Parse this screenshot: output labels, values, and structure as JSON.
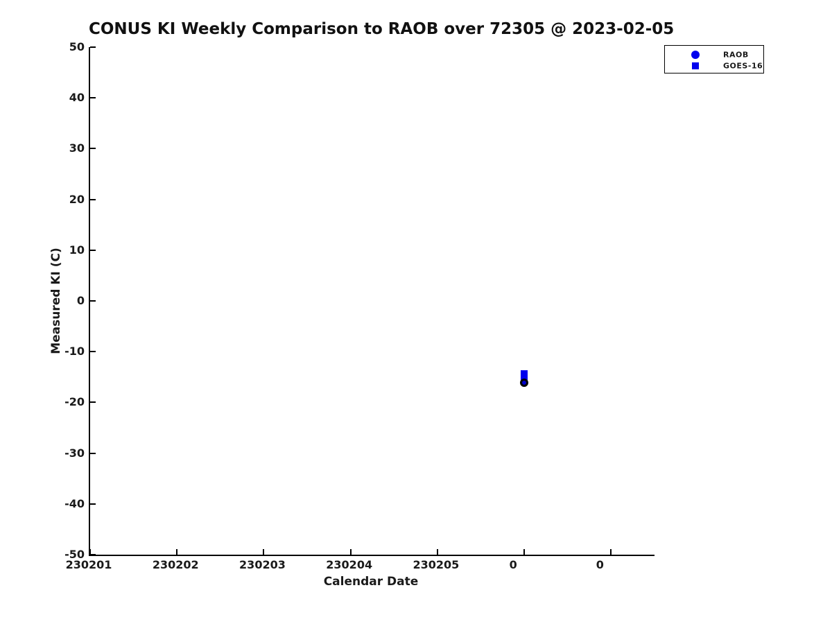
{
  "window": {
    "background": "#ffffff"
  },
  "chart_data": {
    "type": "scatter",
    "title": "CONUS KI Weekly Comparison to RAOB over 72305 @ 2023-02-05",
    "xlabel": "Calendar Date",
    "ylabel": "Measured KI (C)",
    "ylim": [
      -50,
      50
    ],
    "ytick_labels": [
      "50",
      "40",
      "30",
      "20",
      "10",
      "0",
      "-10",
      "-20",
      "-30",
      "-40",
      "-50"
    ],
    "xtick_labels": [
      "230201",
      "230202",
      "230203",
      "230204",
      "230205",
      "0",
      "0"
    ],
    "grid": false,
    "axis_color": "#000000",
    "accent_blue": "#0000ee",
    "legend": {
      "position": "top-right",
      "entries": [
        {
          "label": "RAOB",
          "marker": "circle",
          "color": "#0000ee"
        },
        {
          "label": "GOES-16",
          "marker": "square",
          "color": "#0000ee"
        }
      ]
    },
    "series": [
      {
        "name": "GOES-16",
        "marker": "square",
        "marker_size_px": 10,
        "face_color": "#0000ee",
        "edge_color": "#0000ee",
        "points": [
          {
            "x_tick_index": 5,
            "y": -14.4
          },
          {
            "x_tick_index": 5,
            "y": -15.0
          }
        ]
      },
      {
        "name": "RAOB",
        "marker": "circle",
        "marker_size_px": 12,
        "face_color": "#0000cc",
        "edge_color": "#000000",
        "points": [
          {
            "x_tick_index": 5,
            "y": -16.1
          }
        ]
      }
    ]
  }
}
